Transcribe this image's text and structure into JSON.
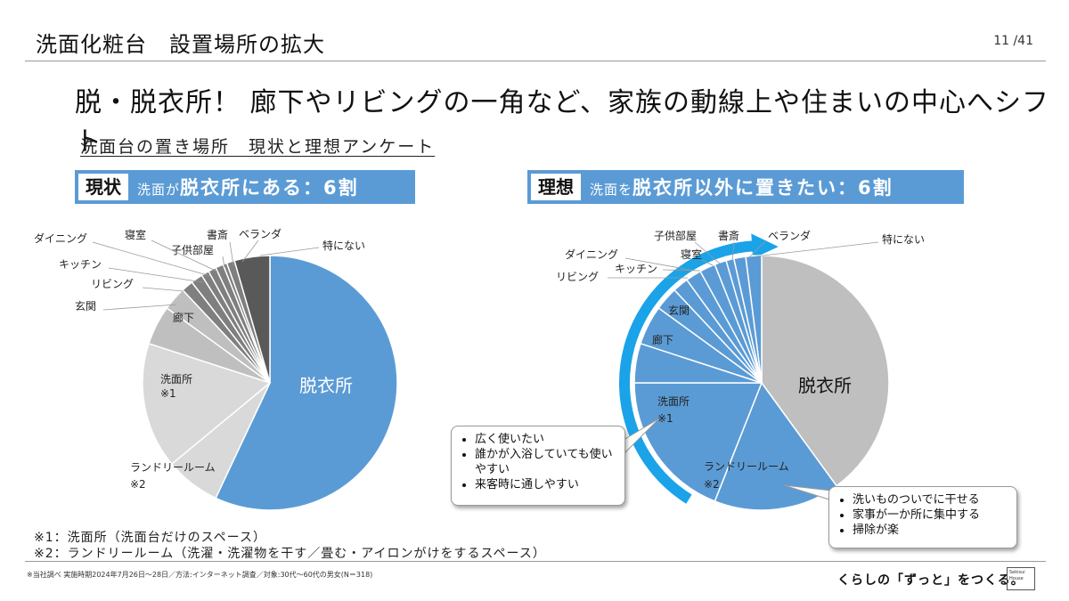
{
  "header": {
    "title": "洗面化粧台　設置場所の拡大",
    "page": "11 /41"
  },
  "headline": "脱・脱衣所！ 廊下やリビングの一角など、家族の動線上や住まいの中心へシフト",
  "subhead": "洗面台の置き場所　現状と理想アンケート",
  "left_banner": {
    "tag": "現状",
    "pre": "洗面が",
    "main": "脱衣所にある：6割"
  },
  "right_banner": {
    "tag": "理想",
    "pre": "洗面を",
    "main": "脱衣所以外に置きたい：6割"
  },
  "colors": {
    "accent": "#5b9bd5",
    "gray_light": "#d9d9d9",
    "gray_mid": "#bfbfbf",
    "gray_dark": "#7f7f7f",
    "arrow": "#1aa3e8"
  },
  "chart_data": [
    {
      "type": "pie",
      "name": "現状",
      "labels": [
        "脱衣所",
        "ランドリールーム ※2",
        "洗面所 ※1",
        "廊下",
        "玄関",
        "リビング",
        "キッチン",
        "ダイニング",
        "寝室",
        "子供部屋",
        "書斎",
        "ベランダ",
        "特にない"
      ],
      "values": [
        57,
        7,
        16,
        5,
        3,
        1.5,
        1.5,
        1,
        1,
        1,
        0.5,
        1,
        4.5
      ],
      "slice_labels": {
        "脱衣所": "脱衣所",
        "洗面所": "洗面所",
        "洗面所_note": "※1",
        "ランドリー": "ランドリールーム",
        "ランドリー_note": "※2",
        "廊下": "廊下",
        "玄関": "玄関",
        "リビング": "リビング",
        "キッチン": "キッチン",
        "ダイニング": "ダイニング",
        "寝室": "寝室",
        "子供部屋": "子供部屋",
        "書斎": "書斎",
        "ベランダ": "ベランダ",
        "特にない": "特にない"
      }
    },
    {
      "type": "pie",
      "name": "理想",
      "labels": [
        "脱衣所",
        "ランドリールーム ※2",
        "洗面所 ※1",
        "廊下",
        "玄関",
        "リビング",
        "キッチン",
        "ダイニング",
        "寝室",
        "子供部屋",
        "書斎",
        "ベランダ",
        "特にない"
      ],
      "values": [
        40,
        16,
        19,
        5,
        5,
        3,
        2,
        2,
        2,
        1.5,
        1,
        1.5,
        2
      ],
      "slice_labels": {
        "脱衣所": "脱衣所",
        "洗面所": "洗面所",
        "洗面所_note": "※1",
        "ランドリー": "ランドリールーム",
        "ランドリー_note": "※2",
        "廊下": "廊下",
        "玄関": "玄関",
        "リビング": "リビング",
        "キッチン": "キッチン",
        "ダイニング": "ダイニング",
        "寝室": "寝室",
        "子供部屋": "子供部屋",
        "書斎": "書斎",
        "ベランダ": "ベランダ",
        "特にない": "特にない"
      }
    }
  ],
  "callout_left": [
    "広く使いたい",
    "誰かが入浴していても使いやすい",
    "来客時に通しやすい"
  ],
  "callout_right": [
    "洗いものついでに干せる",
    "家事が一か所に集中する",
    "掃除が楽"
  ],
  "notes": {
    "n1": "※1：洗面所（洗面台だけのスペース）",
    "n2": "※2：ランドリールーム（洗濯・洗濯物を干す／畳む・アイロンがけをするスペース）"
  },
  "source": "※当社調べ 実施時期2024年7月26日〜28日／方法:インターネット調査／対象:30代〜60代の男女(N＝318)",
  "tagline": "くらしの「ずっと」をつくる。",
  "logo": [
    "Sekisui",
    "House"
  ]
}
